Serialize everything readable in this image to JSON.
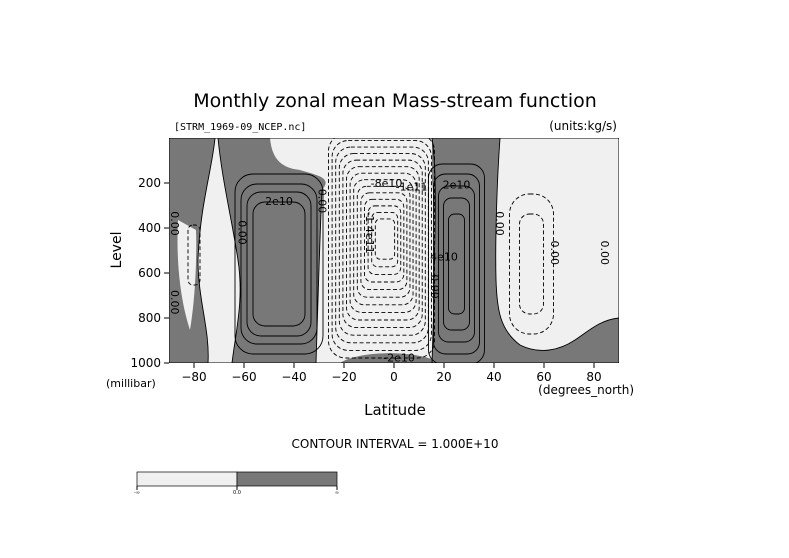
{
  "chart_data": {
    "type": "contour",
    "title": "Monthly zonal mean Mass-stream function",
    "file_label": "[STRM_1969-09_NCEP.nc]",
    "units_label": "(units:kg/s)",
    "xlabel": "Latitude",
    "ylabel": "Level",
    "x_unit": "(degrees_north)",
    "y_unit": "(millibar)",
    "xlim": [
      -90,
      90
    ],
    "ylim": [
      1000,
      0
    ],
    "x_ticks": [
      -80,
      -60,
      -40,
      -20,
      0,
      20,
      40,
      60,
      80
    ],
    "y_ticks": [
      200,
      400,
      600,
      800,
      1000
    ],
    "contour_interval_text": "CONTOUR INTERVAL = 1.000E+10",
    "contour_interval": 10000000000,
    "shading": {
      "negative_color": "#f0f0f0",
      "positive_color": "#787878"
    },
    "colorbar_labels": [
      "-∞",
      "0.0",
      "∞"
    ],
    "cells": [
      {
        "sign": "positive",
        "lat": -46,
        "p": 560,
        "peak": 50000000000.0
      },
      {
        "sign": "negative",
        "lat": -5,
        "p": 480,
        "peak": -140000000000.0
      },
      {
        "sign": "positive",
        "lat": 25,
        "p": 560,
        "peak": 50000000000.0
      },
      {
        "sign": "negative",
        "lat": 55,
        "p": 560,
        "peak": -20000000000.0
      },
      {
        "sign": "positive",
        "lat": -80,
        "p": 520,
        "peak": 10000000000.0
      }
    ],
    "contour_labels": [
      {
        "text": "2e10",
        "lat": -46,
        "p": 285
      },
      {
        "text": "0.00",
        "lat": -29,
        "p": 280
      },
      {
        "text": "0.00",
        "lat": -61,
        "p": 420
      },
      {
        "text": "0.00",
        "lat": -88,
        "p": 380
      },
      {
        "text": "0.00",
        "lat": -88,
        "p": 730
      },
      {
        "text": "-8e10",
        "lat": -3,
        "p": 205
      },
      {
        "text": "-1e11",
        "lat": 7,
        "p": 220
      },
      {
        "text": "-1.4e11",
        "lat": -10,
        "p": 420
      },
      {
        "text": "0.00",
        "lat": 16,
        "p": 660
      },
      {
        "text": "2e10",
        "lat": 25,
        "p": 210
      },
      {
        "text": "4e10",
        "lat": 20,
        "p": 530
      },
      {
        "text": "0.00",
        "lat": 42,
        "p": 380
      },
      {
        "text": "0.00",
        "lat": 64,
        "p": 510
      },
      {
        "text": "0.00",
        "lat": 84,
        "p": 510
      },
      {
        "text": "-2e10",
        "lat": 2,
        "p": 980
      }
    ]
  }
}
